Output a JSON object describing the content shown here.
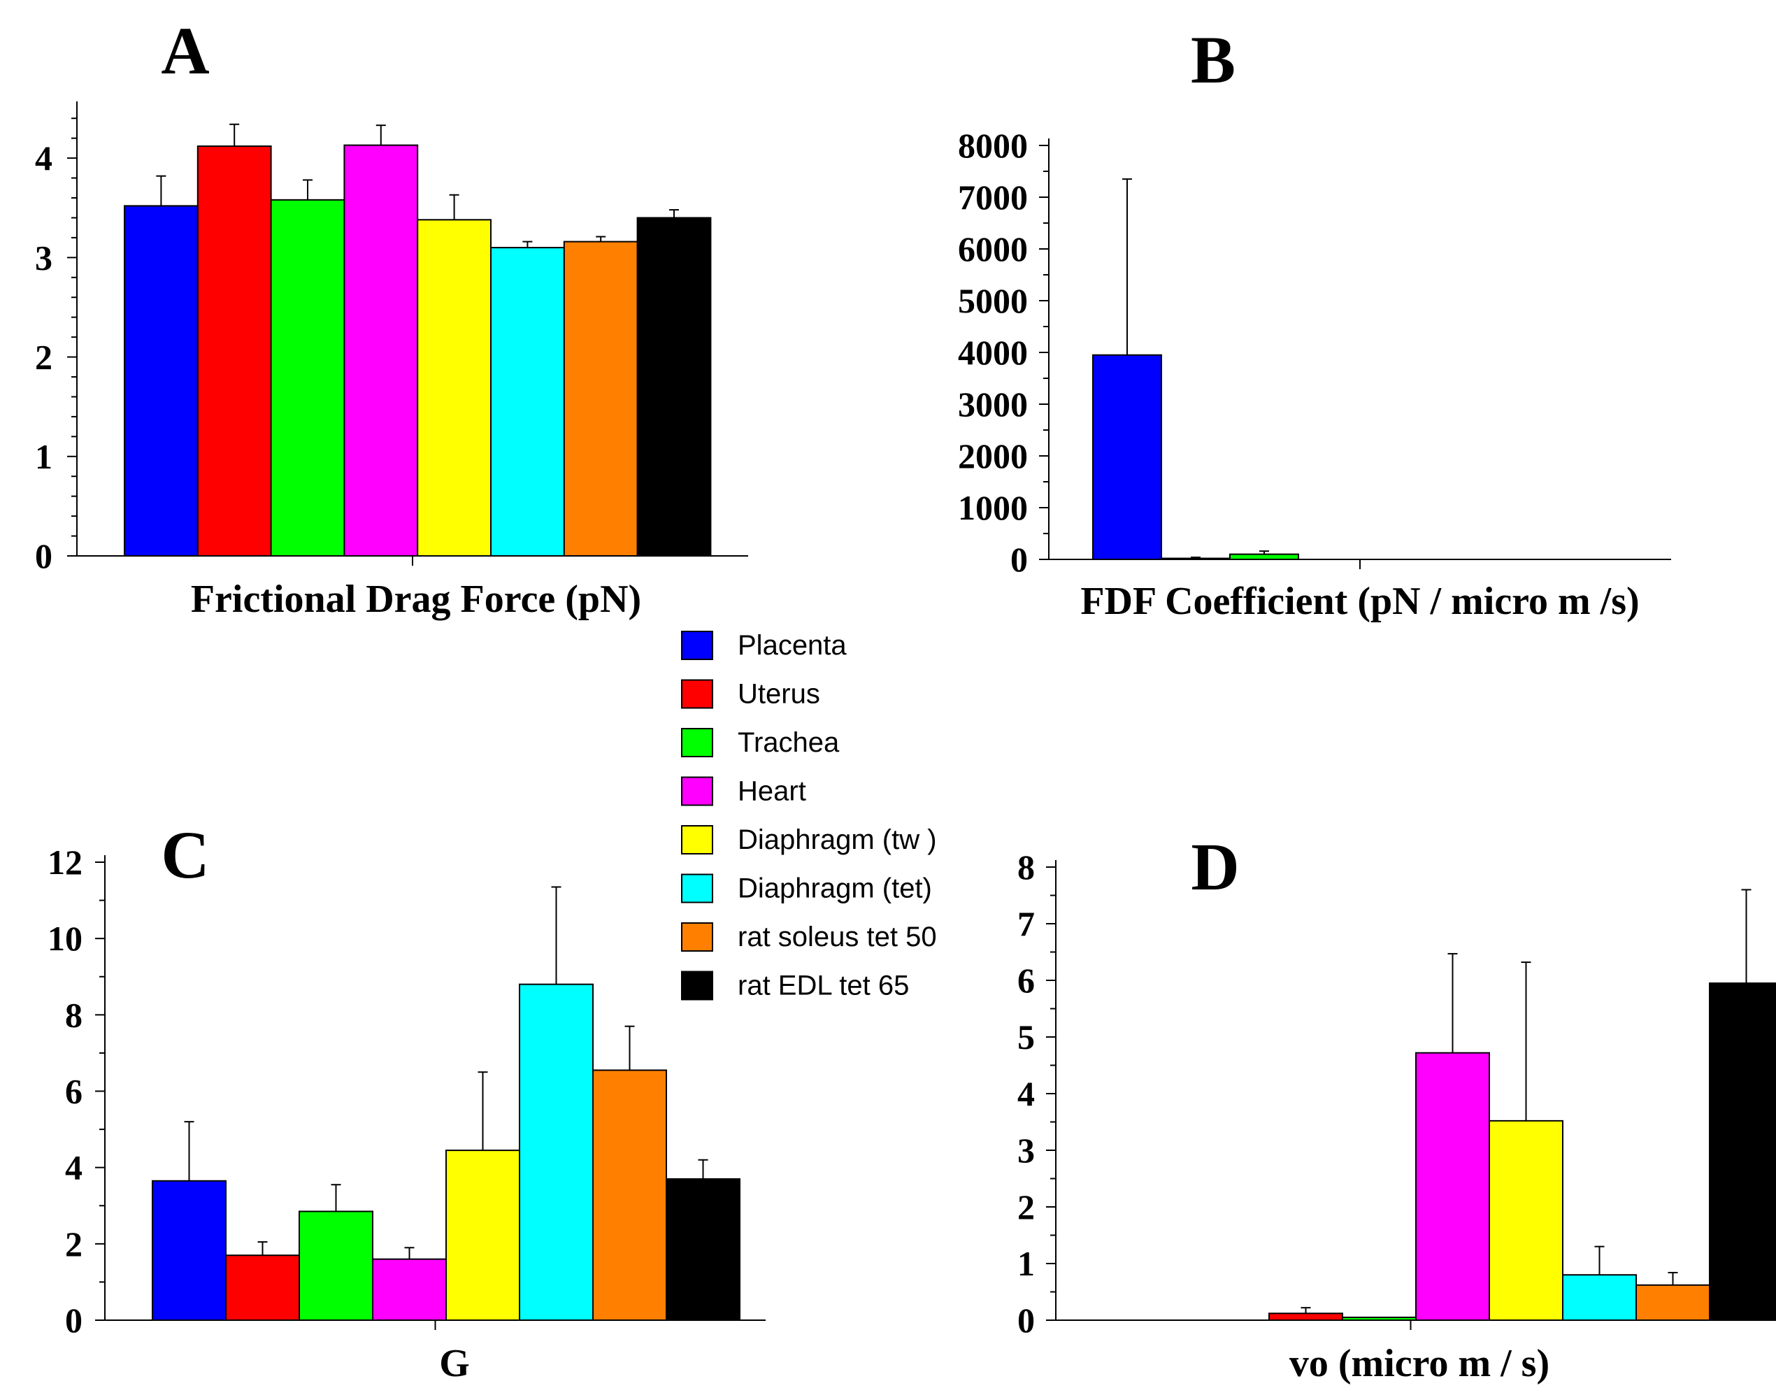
{
  "series_colors": [
    "#0000ff",
    "#ff0000",
    "#00ff00",
    "#ff00ff",
    "#ffff00",
    "#00ffff",
    "#ff8000",
    "#000000"
  ],
  "legend": {
    "items": [
      "Placenta",
      "Uterus",
      "Trachea",
      "Heart",
      "Diaphragm (tw )",
      "Diaphragm (tet)",
      "rat soleus tet 50",
      "rat EDL tet 65"
    ]
  },
  "chart_data": [
    {
      "id": "A",
      "type": "bar",
      "panel_label": "A",
      "title": "",
      "xlabel": "Frictional Drag Force (pN)",
      "ylabel": "",
      "categories": [
        "Placenta",
        "Uterus",
        "Trachea",
        "Heart",
        "Diaphragm (tw )",
        "Diaphragm (tet)",
        "rat soleus tet 50",
        "rat EDL tet 65"
      ],
      "values": [
        3.52,
        4.12,
        3.58,
        4.13,
        3.38,
        3.1,
        3.16,
        3.4
      ],
      "errors": [
        0.3,
        0.22,
        0.2,
        0.2,
        0.25,
        0.06,
        0.05,
        0.08
      ],
      "ylim": [
        0,
        4.5
      ],
      "yticks": [
        0,
        1,
        2,
        3,
        4
      ],
      "ytick_labels": [
        "0",
        "1",
        "2",
        "3",
        "4"
      ],
      "grid": false
    },
    {
      "id": "B",
      "type": "bar",
      "panel_label": "B",
      "title": "",
      "xlabel": "FDF Coefficient (pN / micro m /s)",
      "ylabel": "",
      "categories": [
        "Placenta",
        "Uterus",
        "Trachea",
        "Heart",
        "Diaphragm (tw )",
        "Diaphragm (tet)",
        "rat soleus tet 50",
        "rat EDL tet 65"
      ],
      "values": [
        3950,
        20,
        100,
        0,
        0,
        0,
        0,
        0
      ],
      "errors": [
        3400,
        20,
        60,
        0,
        0,
        0,
        0,
        0
      ],
      "ylim": [
        0,
        8000
      ],
      "yticks": [
        0,
        1000,
        2000,
        3000,
        4000,
        5000,
        6000,
        7000,
        8000
      ],
      "ytick_labels": [
        "0",
        "1000",
        "2000",
        "3000",
        "4000",
        "5000",
        "6000",
        "7000",
        "8000"
      ],
      "grid": false
    },
    {
      "id": "C",
      "type": "bar",
      "panel_label": "C",
      "title": "",
      "xlabel": "G",
      "ylabel": "",
      "categories": [
        "Placenta",
        "Uterus",
        "Trachea",
        "Heart",
        "Diaphragm (tw )",
        "Diaphragm (tet)",
        "rat soleus tet 50",
        "rat EDL tet 65"
      ],
      "values": [
        3.65,
        1.7,
        2.85,
        1.6,
        4.45,
        8.8,
        6.55,
        3.7
      ],
      "errors": [
        1.55,
        0.35,
        0.7,
        0.3,
        2.05,
        2.55,
        1.15,
        0.5
      ],
      "ylim": [
        0,
        12
      ],
      "yticks": [
        0,
        2,
        4,
        6,
        8,
        10,
        12
      ],
      "ytick_labels": [
        "0",
        "2",
        "4",
        "6",
        "8",
        "10",
        "12"
      ],
      "grid": false
    },
    {
      "id": "D",
      "type": "bar",
      "panel_label": "D",
      "title": "",
      "xlabel": "vo (micro m / s)",
      "ylabel": "",
      "categories": [
        "Placenta",
        "Uterus",
        "Trachea",
        "Heart",
        "Diaphragm (tw )",
        "Diaphragm (tet)",
        "rat soleus tet 50",
        "rat EDL tet 65"
      ],
      "values": [
        0,
        0.12,
        0.05,
        4.72,
        3.52,
        0.8,
        0.62,
        5.95
      ],
      "errors": [
        0,
        0.1,
        0,
        1.75,
        2.8,
        0.5,
        0.22,
        1.65
      ],
      "ylim": [
        0,
        8
      ],
      "yticks": [
        0,
        1,
        2,
        3,
        4,
        5,
        6,
        7,
        8
      ],
      "ytick_labels": [
        "0",
        "1",
        "2",
        "3",
        "4",
        "5",
        "6",
        "7",
        "8"
      ],
      "grid": false
    }
  ]
}
